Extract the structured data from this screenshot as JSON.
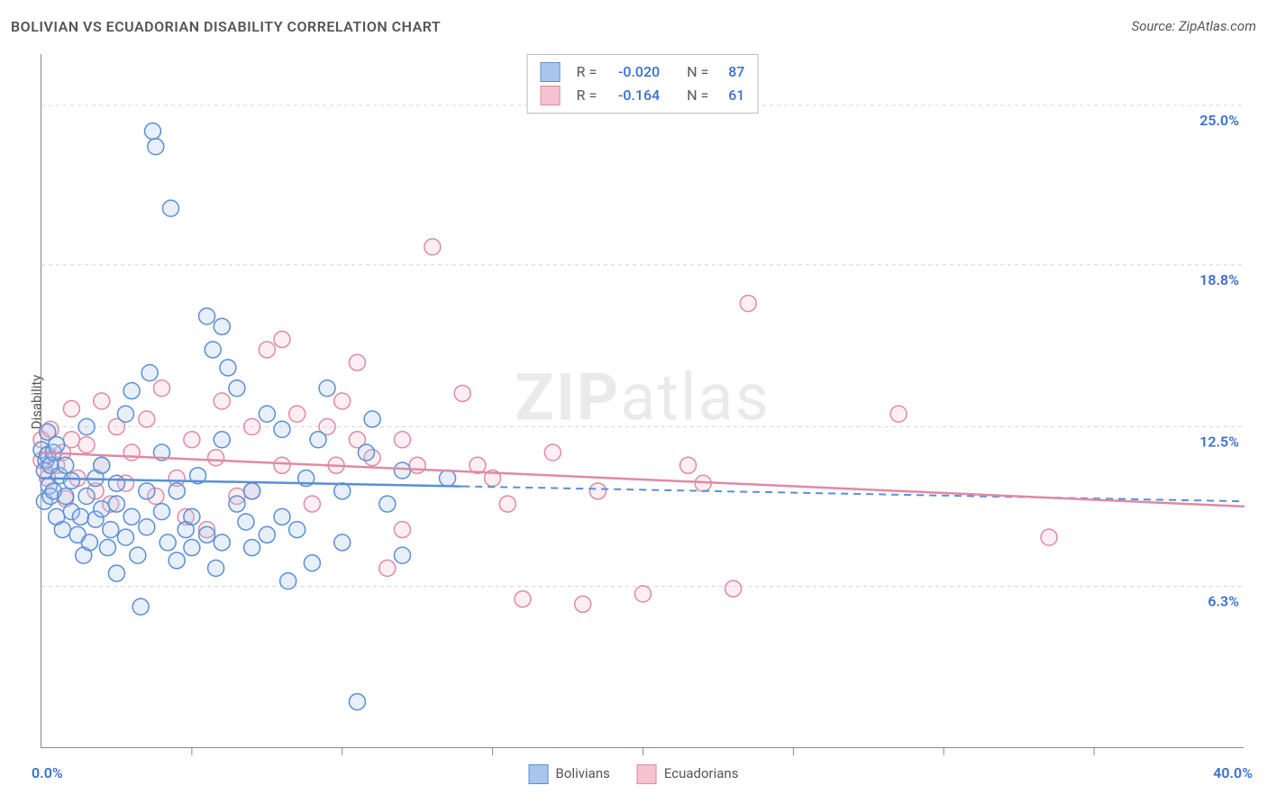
{
  "title": "BOLIVIAN VS ECUADORIAN DISABILITY CORRELATION CHART",
  "source": "Source: ZipAtlas.com",
  "ylabel": "Disability",
  "watermark_bold": "ZIP",
  "watermark_rest": "atlas",
  "chart": {
    "type": "scatter",
    "background_color": "#ffffff",
    "axis_color": "#888888",
    "grid_color": "#d5d5d5",
    "grid_dash": "4 4",
    "text_color": "#555555",
    "value_color": "#3b6fd1",
    "title_fontsize": 16,
    "label_fontsize": 15,
    "tick_fontsize": 16,
    "xlim": [
      0,
      40
    ],
    "ylim": [
      0,
      27
    ],
    "y_gridlines": [
      6.3,
      12.5,
      18.8,
      25.0
    ],
    "y_tick_labels": [
      "6.3%",
      "12.5%",
      "18.8%",
      "25.0%"
    ],
    "x_tick_positions": [
      5,
      10,
      15,
      20,
      25,
      30,
      35
    ],
    "x_min_label": "0.0%",
    "x_max_label": "40.0%",
    "marker_radius": 9,
    "marker_stroke_width": 1.5,
    "marker_fill_opacity": 0.28,
    "series": [
      {
        "name": "Bolivians",
        "color_stroke": "#5a8fd6",
        "color_fill": "#a9c5ec",
        "R": "-0.020",
        "N": "87",
        "regression": {
          "x1": 0,
          "y1": 10.5,
          "x2": 40,
          "y2": 9.6,
          "solid_until_x": 14,
          "stroke_width": 2.5
        },
        "points": [
          [
            0.0,
            11.6
          ],
          [
            0.1,
            10.8
          ],
          [
            0.1,
            9.6
          ],
          [
            0.15,
            11.2
          ],
          [
            0.2,
            12.3
          ],
          [
            0.2,
            11.4
          ],
          [
            0.25,
            10.2
          ],
          [
            0.3,
            11.0
          ],
          [
            0.3,
            9.8
          ],
          [
            0.4,
            11.5
          ],
          [
            0.4,
            10.0
          ],
          [
            0.5,
            11.8
          ],
          [
            0.5,
            9.0
          ],
          [
            0.6,
            10.6
          ],
          [
            0.7,
            8.5
          ],
          [
            0.8,
            9.8
          ],
          [
            0.8,
            11.0
          ],
          [
            1.0,
            9.2
          ],
          [
            1.0,
            10.4
          ],
          [
            1.2,
            8.3
          ],
          [
            1.3,
            9.0
          ],
          [
            1.4,
            7.5
          ],
          [
            1.5,
            9.8
          ],
          [
            1.5,
            12.5
          ],
          [
            1.6,
            8.0
          ],
          [
            1.8,
            10.5
          ],
          [
            1.8,
            8.9
          ],
          [
            2.0,
            9.3
          ],
          [
            2.0,
            11.0
          ],
          [
            2.2,
            7.8
          ],
          [
            2.3,
            8.5
          ],
          [
            2.5,
            6.8
          ],
          [
            2.5,
            9.5
          ],
          [
            2.5,
            10.3
          ],
          [
            2.8,
            13.0
          ],
          [
            2.8,
            8.2
          ],
          [
            3.0,
            9.0
          ],
          [
            3.0,
            13.9
          ],
          [
            3.2,
            7.5
          ],
          [
            3.3,
            5.5
          ],
          [
            3.5,
            8.6
          ],
          [
            3.5,
            10.0
          ],
          [
            3.6,
            14.6
          ],
          [
            3.7,
            24.0
          ],
          [
            3.8,
            23.4
          ],
          [
            4.0,
            9.2
          ],
          [
            4.0,
            11.5
          ],
          [
            4.2,
            8.0
          ],
          [
            4.3,
            21.0
          ],
          [
            4.5,
            7.3
          ],
          [
            4.5,
            10.0
          ],
          [
            4.8,
            8.5
          ],
          [
            5.0,
            9.0
          ],
          [
            5.0,
            7.8
          ],
          [
            5.2,
            10.6
          ],
          [
            5.5,
            8.3
          ],
          [
            5.5,
            16.8
          ],
          [
            5.7,
            15.5
          ],
          [
            5.8,
            7.0
          ],
          [
            6.0,
            16.4
          ],
          [
            6.0,
            12.0
          ],
          [
            6.0,
            8.0
          ],
          [
            6.2,
            14.8
          ],
          [
            6.5,
            14.0
          ],
          [
            6.5,
            9.5
          ],
          [
            6.8,
            8.8
          ],
          [
            7.0,
            10.0
          ],
          [
            7.0,
            7.8
          ],
          [
            7.5,
            13.0
          ],
          [
            7.5,
            8.3
          ],
          [
            8.0,
            9.0
          ],
          [
            8.0,
            12.4
          ],
          [
            8.2,
            6.5
          ],
          [
            8.5,
            8.5
          ],
          [
            8.8,
            10.5
          ],
          [
            9.0,
            7.2
          ],
          [
            9.2,
            12.0
          ],
          [
            9.5,
            14.0
          ],
          [
            10.0,
            10.0
          ],
          [
            10.0,
            8.0
          ],
          [
            10.5,
            1.8
          ],
          [
            10.8,
            11.5
          ],
          [
            11.0,
            12.8
          ],
          [
            11.5,
            9.5
          ],
          [
            12.0,
            7.5
          ],
          [
            12.0,
            10.8
          ],
          [
            13.5,
            10.5
          ]
        ]
      },
      {
        "name": "Ecuadorians",
        "color_stroke": "#e08aa4",
        "color_fill": "#f5c2d1",
        "R": "-0.164",
        "N": "61",
        "regression": {
          "x1": 0,
          "y1": 11.5,
          "x2": 40,
          "y2": 9.4,
          "solid_until_x": 40,
          "stroke_width": 2.5
        },
        "points": [
          [
            0.0,
            12.0
          ],
          [
            0.0,
            11.2
          ],
          [
            0.2,
            10.5
          ],
          [
            0.3,
            12.4
          ],
          [
            0.5,
            11.0
          ],
          [
            0.7,
            11.5
          ],
          [
            0.8,
            9.7
          ],
          [
            1.0,
            12.0
          ],
          [
            1.0,
            13.2
          ],
          [
            1.2,
            10.5
          ],
          [
            1.5,
            11.8
          ],
          [
            1.8,
            10.0
          ],
          [
            2.0,
            13.5
          ],
          [
            2.0,
            11.0
          ],
          [
            2.3,
            9.5
          ],
          [
            2.5,
            12.5
          ],
          [
            2.8,
            10.3
          ],
          [
            3.0,
            11.5
          ],
          [
            3.5,
            12.8
          ],
          [
            3.8,
            9.8
          ],
          [
            4.0,
            14.0
          ],
          [
            4.5,
            10.5
          ],
          [
            4.8,
            9.0
          ],
          [
            5.0,
            12.0
          ],
          [
            5.5,
            8.5
          ],
          [
            5.8,
            11.3
          ],
          [
            6.0,
            13.5
          ],
          [
            6.5,
            9.8
          ],
          [
            7.0,
            12.5
          ],
          [
            7.0,
            10.0
          ],
          [
            7.5,
            15.5
          ],
          [
            8.0,
            11.0
          ],
          [
            8.0,
            15.9
          ],
          [
            8.5,
            13.0
          ],
          [
            9.0,
            9.5
          ],
          [
            9.5,
            12.5
          ],
          [
            9.8,
            11.0
          ],
          [
            10.0,
            13.5
          ],
          [
            10.5,
            12.0
          ],
          [
            10.5,
            15.0
          ],
          [
            11.0,
            11.3
          ],
          [
            11.5,
            7.0
          ],
          [
            12.0,
            8.5
          ],
          [
            12.0,
            12.0
          ],
          [
            12.5,
            11.0
          ],
          [
            13.0,
            19.5
          ],
          [
            14.0,
            13.8
          ],
          [
            14.5,
            11.0
          ],
          [
            15.0,
            10.5
          ],
          [
            15.5,
            9.5
          ],
          [
            16.0,
            5.8
          ],
          [
            17.0,
            11.5
          ],
          [
            18.0,
            5.6
          ],
          [
            18.5,
            10.0
          ],
          [
            20.0,
            6.0
          ],
          [
            21.5,
            11.0
          ],
          [
            22.0,
            10.3
          ],
          [
            23.0,
            6.2
          ],
          [
            23.5,
            17.3
          ],
          [
            28.5,
            13.0
          ],
          [
            33.5,
            8.2
          ]
        ]
      }
    ]
  },
  "bottom_legend": [
    {
      "label": "Bolivians",
      "fill": "#a9c5ec",
      "stroke": "#5a8fd6"
    },
    {
      "label": "Ecuadorians",
      "fill": "#f5c2d1",
      "stroke": "#e08aa4"
    }
  ]
}
